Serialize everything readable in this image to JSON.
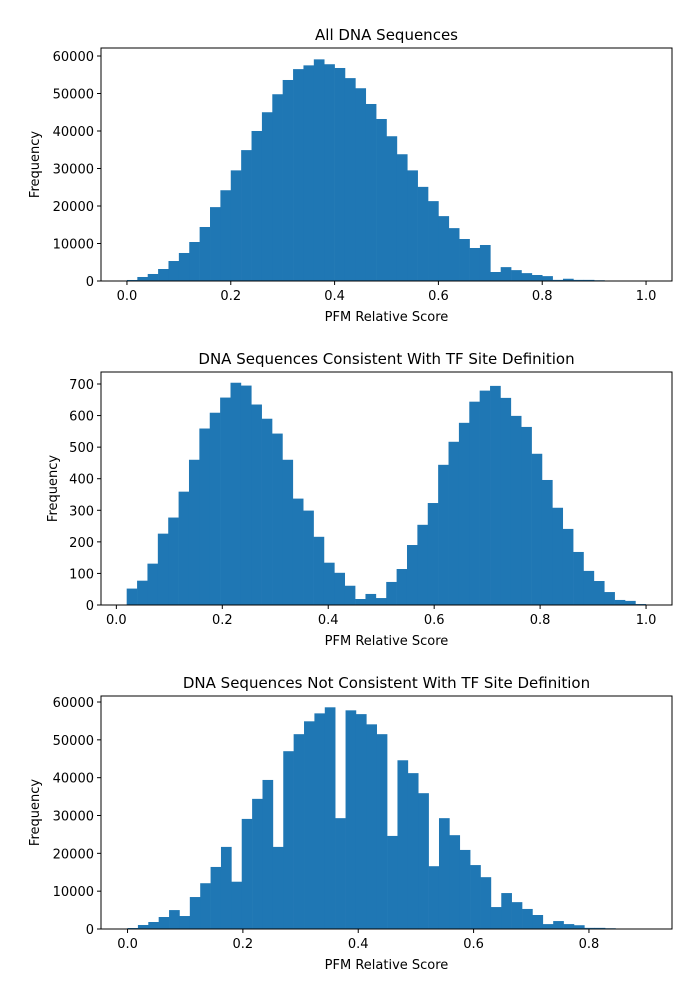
{
  "figure": {
    "background": "#ffffff",
    "bar_color": "#1f77b4"
  },
  "chart_data": [
    {
      "type": "bar",
      "subtype": "histogram",
      "title": "All DNA Sequences",
      "xlabel": "PFM Relative Score",
      "ylabel": "Frequency",
      "xlim": [
        -0.05,
        1.05
      ],
      "ylim": [
        0,
        62130
      ],
      "xticks": [
        0.0,
        0.2,
        0.4,
        0.6,
        0.8,
        1.0
      ],
      "xtick_labels": [
        "0.0",
        "0.2",
        "0.4",
        "0.6",
        "0.8",
        "1.0"
      ],
      "yticks": [
        0,
        10000,
        20000,
        30000,
        40000,
        50000,
        60000
      ],
      "ytick_labels": [
        "0",
        "10000",
        "20000",
        "30000",
        "40000",
        "50000",
        "60000"
      ],
      "bin_start": 0.0,
      "bin_width": 0.02,
      "values": [
        270,
        1070,
        1870,
        3200,
        5330,
        7470,
        10400,
        14400,
        19700,
        24200,
        29500,
        34900,
        40000,
        45000,
        49800,
        53600,
        56500,
        57500,
        59100,
        57800,
        56800,
        54100,
        51400,
        47200,
        43200,
        38600,
        33800,
        29500,
        25100,
        21300,
        17300,
        14100,
        11200,
        8800,
        9600,
        2400,
        3700,
        2900,
        2100,
        1600,
        1300,
        300,
        600,
        300,
        300,
        200,
        0,
        0,
        0,
        0
      ],
      "grid": false,
      "legend": "none"
    },
    {
      "type": "bar",
      "subtype": "histogram",
      "title": "DNA Sequences Consistent With TF Site Definition",
      "xlabel": "PFM Relative Score",
      "ylabel": "Frequency",
      "xlim": [
        -0.029,
        1.049
      ],
      "ylim": [
        0,
        738
      ],
      "xticks": [
        0.0,
        0.2,
        0.4,
        0.6,
        0.8,
        1.0
      ],
      "xtick_labels": [
        "0.0",
        "0.2",
        "0.4",
        "0.6",
        "0.8",
        "1.0"
      ],
      "yticks": [
        0,
        100,
        200,
        300,
        400,
        500,
        600,
        700
      ],
      "ytick_labels": [
        "0",
        "100",
        "200",
        "300",
        "400",
        "500",
        "600",
        "700"
      ],
      "bin_start": 0.0195,
      "bin_width": 0.0196,
      "values": [
        52,
        77,
        131,
        226,
        277,
        359,
        460,
        559,
        609,
        657,
        704,
        695,
        635,
        590,
        543,
        460,
        337,
        299,
        216,
        134,
        102,
        61,
        19,
        35,
        22,
        73,
        114,
        190,
        254,
        323,
        444,
        517,
        577,
        644,
        679,
        694,
        656,
        599,
        564,
        479,
        396,
        308,
        241,
        168,
        108,
        76,
        41,
        16,
        13,
        3
      ],
      "grid": false,
      "legend": "none"
    },
    {
      "type": "bar",
      "subtype": "histogram",
      "title": "DNA Sequences Not Consistent With TF Site Definition",
      "xlabel": "PFM Relative Score",
      "ylabel": "Frequency",
      "xlim": [
        -0.046,
        0.944
      ],
      "ylim": [
        0,
        61590
      ],
      "xticks": [
        0.0,
        0.2,
        0.4,
        0.6,
        0.8
      ],
      "xtick_labels": [
        "0.0",
        "0.2",
        "0.4",
        "0.6",
        "0.8"
      ],
      "yticks": [
        0,
        10000,
        20000,
        30000,
        40000,
        50000,
        60000
      ],
      "ytick_labels": [
        "0",
        "10000",
        "20000",
        "30000",
        "40000",
        "50000",
        "60000"
      ],
      "bin_start": 0.0,
      "bin_width": 0.018,
      "values": [
        260,
        1060,
        1850,
        3170,
        5000,
        3430,
        8450,
        12100,
        16400,
        21700,
        12500,
        29100,
        34400,
        39400,
        21700,
        47000,
        51500,
        54900,
        57000,
        58600,
        29300,
        57800,
        56800,
        54100,
        51500,
        24600,
        44600,
        41200,
        35900,
        16600,
        29300,
        24800,
        20900,
        16900,
        13700,
        5800,
        9500,
        7100,
        5300,
        3700,
        1300,
        2100,
        1300,
        1000,
        300,
        300,
        200,
        0,
        0,
        0
      ],
      "grid": false,
      "legend": "none"
    }
  ]
}
